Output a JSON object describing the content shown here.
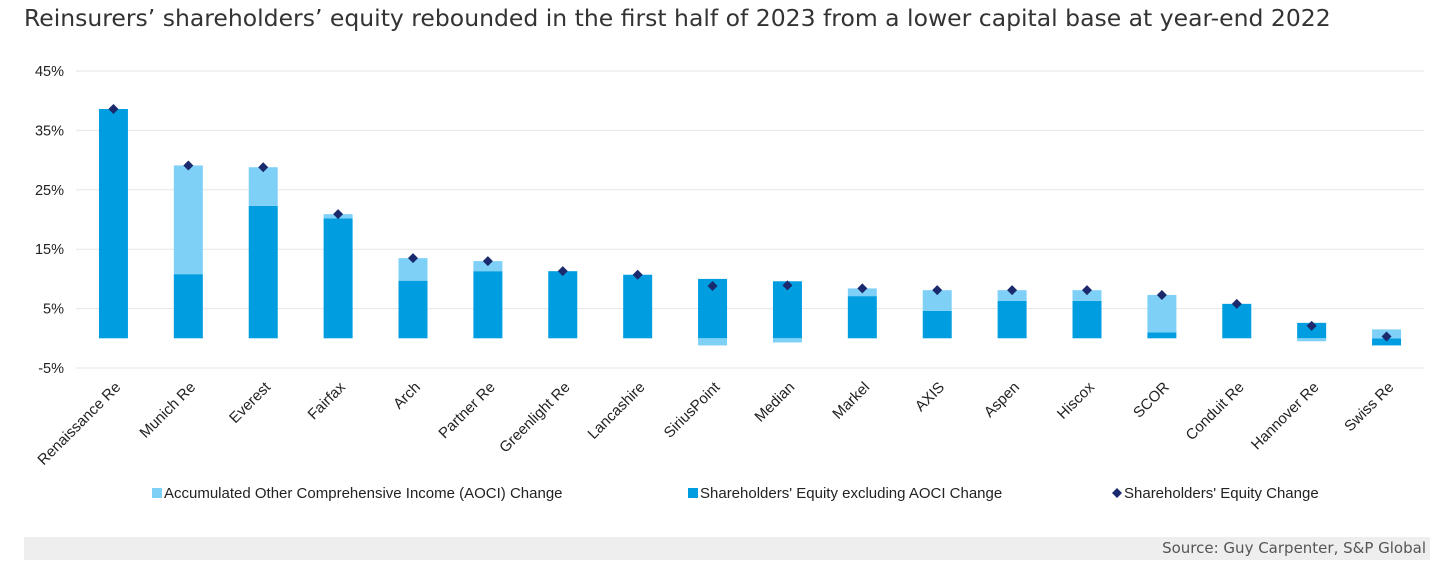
{
  "title": "Reinsurers’ shareholders’ equity rebounded in the first half of 2023 from a lower capital base at year-end 2022",
  "source": "Source: Guy Carpenter, S&P Global",
  "colors": {
    "aoci": "#7fd0f7",
    "equity_ex_aoci": "#009ee0",
    "total": "#1a2a6c",
    "grid": "#e6e6e6"
  },
  "chart_data": {
    "type": "bar",
    "stacked": true,
    "categories": [
      "Renaissance Re",
      "Munich Re",
      "Everest",
      "Fairfax",
      "Arch",
      "Partner Re",
      "Greenlight Re",
      "Lancashire",
      "SiriusPoint",
      "Median",
      "Markel",
      "AXIS",
      "Aspen",
      "Hiscox",
      "SCOR",
      "Conduit Re",
      "Hannover Re",
      "Swiss Re"
    ],
    "series": [
      {
        "name": "Accumulated Other Comprehensive Income (AOCI) Change",
        "kind": "bar",
        "values": [
          0.0,
          18.3,
          6.5,
          0.7,
          3.8,
          1.7,
          0.0,
          0.0,
          -1.2,
          -0.7,
          1.3,
          3.5,
          1.8,
          1.8,
          6.3,
          0.0,
          -0.5,
          1.5
        ]
      },
      {
        "name": "Shareholders' Equity excluding AOCI Change",
        "kind": "bar",
        "values": [
          38.6,
          10.8,
          22.3,
          20.2,
          9.7,
          11.3,
          11.3,
          10.7,
          10.0,
          9.6,
          7.1,
          4.6,
          6.3,
          6.3,
          1.0,
          5.8,
          2.6,
          -1.2
        ]
      },
      {
        "name": "Shareholders' Equity Change",
        "kind": "marker",
        "values": [
          38.6,
          29.1,
          28.8,
          20.9,
          13.5,
          13.0,
          11.3,
          10.7,
          8.8,
          8.9,
          8.4,
          8.1,
          8.1,
          8.1,
          7.3,
          5.8,
          2.1,
          0.3
        ]
      }
    ],
    "y_ticks": [
      "45%",
      "35%",
      "25%",
      "15%",
      "5%",
      "-5%"
    ],
    "ylim": [
      -5,
      45
    ],
    "grid": true,
    "legend_position": "bottom"
  }
}
